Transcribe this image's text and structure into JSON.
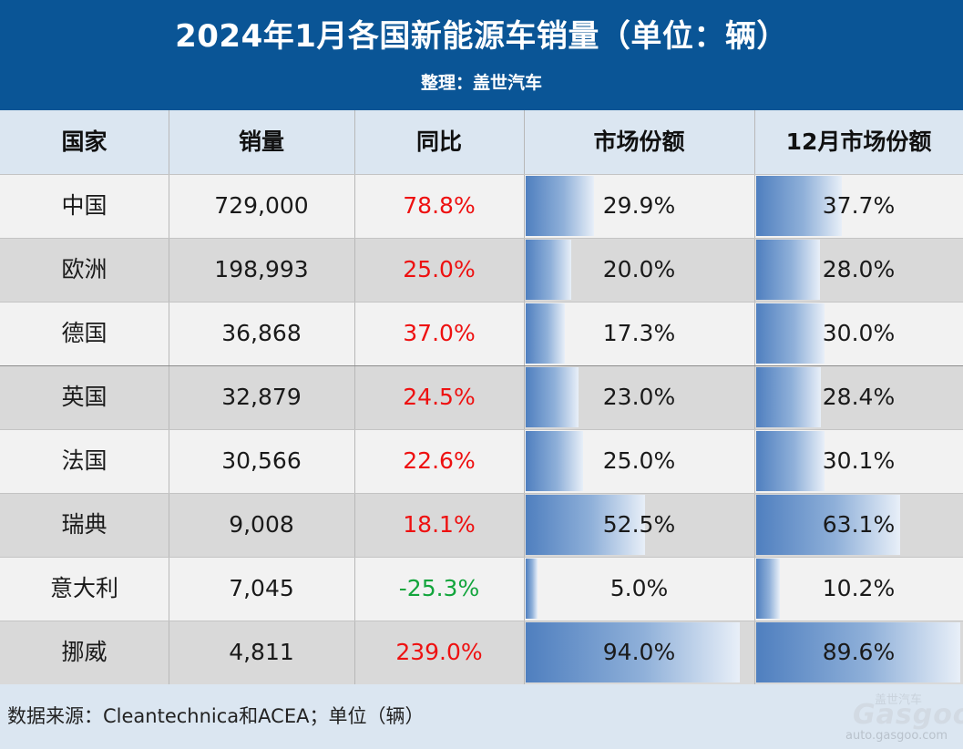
{
  "chart_data": {
    "type": "table",
    "title": "2024年1月各国新能源车销量（单位：辆）",
    "subtitle": "整理：盖世汽车",
    "columns": [
      "国家",
      "销量",
      "同比",
      "市场份额",
      "12月市场份额"
    ],
    "rows": [
      {
        "country": "中国",
        "sales": "729,000",
        "yoy": "78.8%",
        "share": "29.9%",
        "dec_share": "37.7%"
      },
      {
        "country": "欧洲",
        "sales": "198,993",
        "yoy": "25.0%",
        "share": "20.0%",
        "dec_share": "28.0%"
      },
      {
        "country": "德国",
        "sales": "36,868",
        "yoy": "37.0%",
        "share": "17.3%",
        "dec_share": "30.0%"
      },
      {
        "country": "英国",
        "sales": "32,879",
        "yoy": "24.5%",
        "share": "23.0%",
        "dec_share": "28.4%"
      },
      {
        "country": "法国",
        "sales": "30,566",
        "yoy": "22.6%",
        "share": "25.0%",
        "dec_share": "30.1%"
      },
      {
        "country": "瑞典",
        "sales": "9,008",
        "yoy": "18.1%",
        "share": "52.5%",
        "dec_share": "63.1%"
      },
      {
        "country": "意大利",
        "sales": "7,045",
        "yoy": "-25.3%",
        "share": "5.0%",
        "dec_share": "10.2%"
      },
      {
        "country": "挪威",
        "sales": "4,811",
        "yoy": "239.0%",
        "share": "94.0%",
        "dec_share": "89.6%"
      }
    ],
    "source": "数据来源：Cleantechnica和ACEA；单位（辆）"
  },
  "watermark": {
    "cn": "盖世汽车",
    "logo": "Gasgoo",
    "url": "auto.gasgoo.com"
  },
  "colors": {
    "header_bg": "#0a5596",
    "header_row_bg": "#dbe6f1",
    "row_odd_bg": "#f2f2f2",
    "row_even_bg": "#d9d9d9",
    "positive": "#ee1111",
    "negative": "#12a53c",
    "bar_start": "#4f7fbf",
    "bar_end": "#e8eff8"
  }
}
